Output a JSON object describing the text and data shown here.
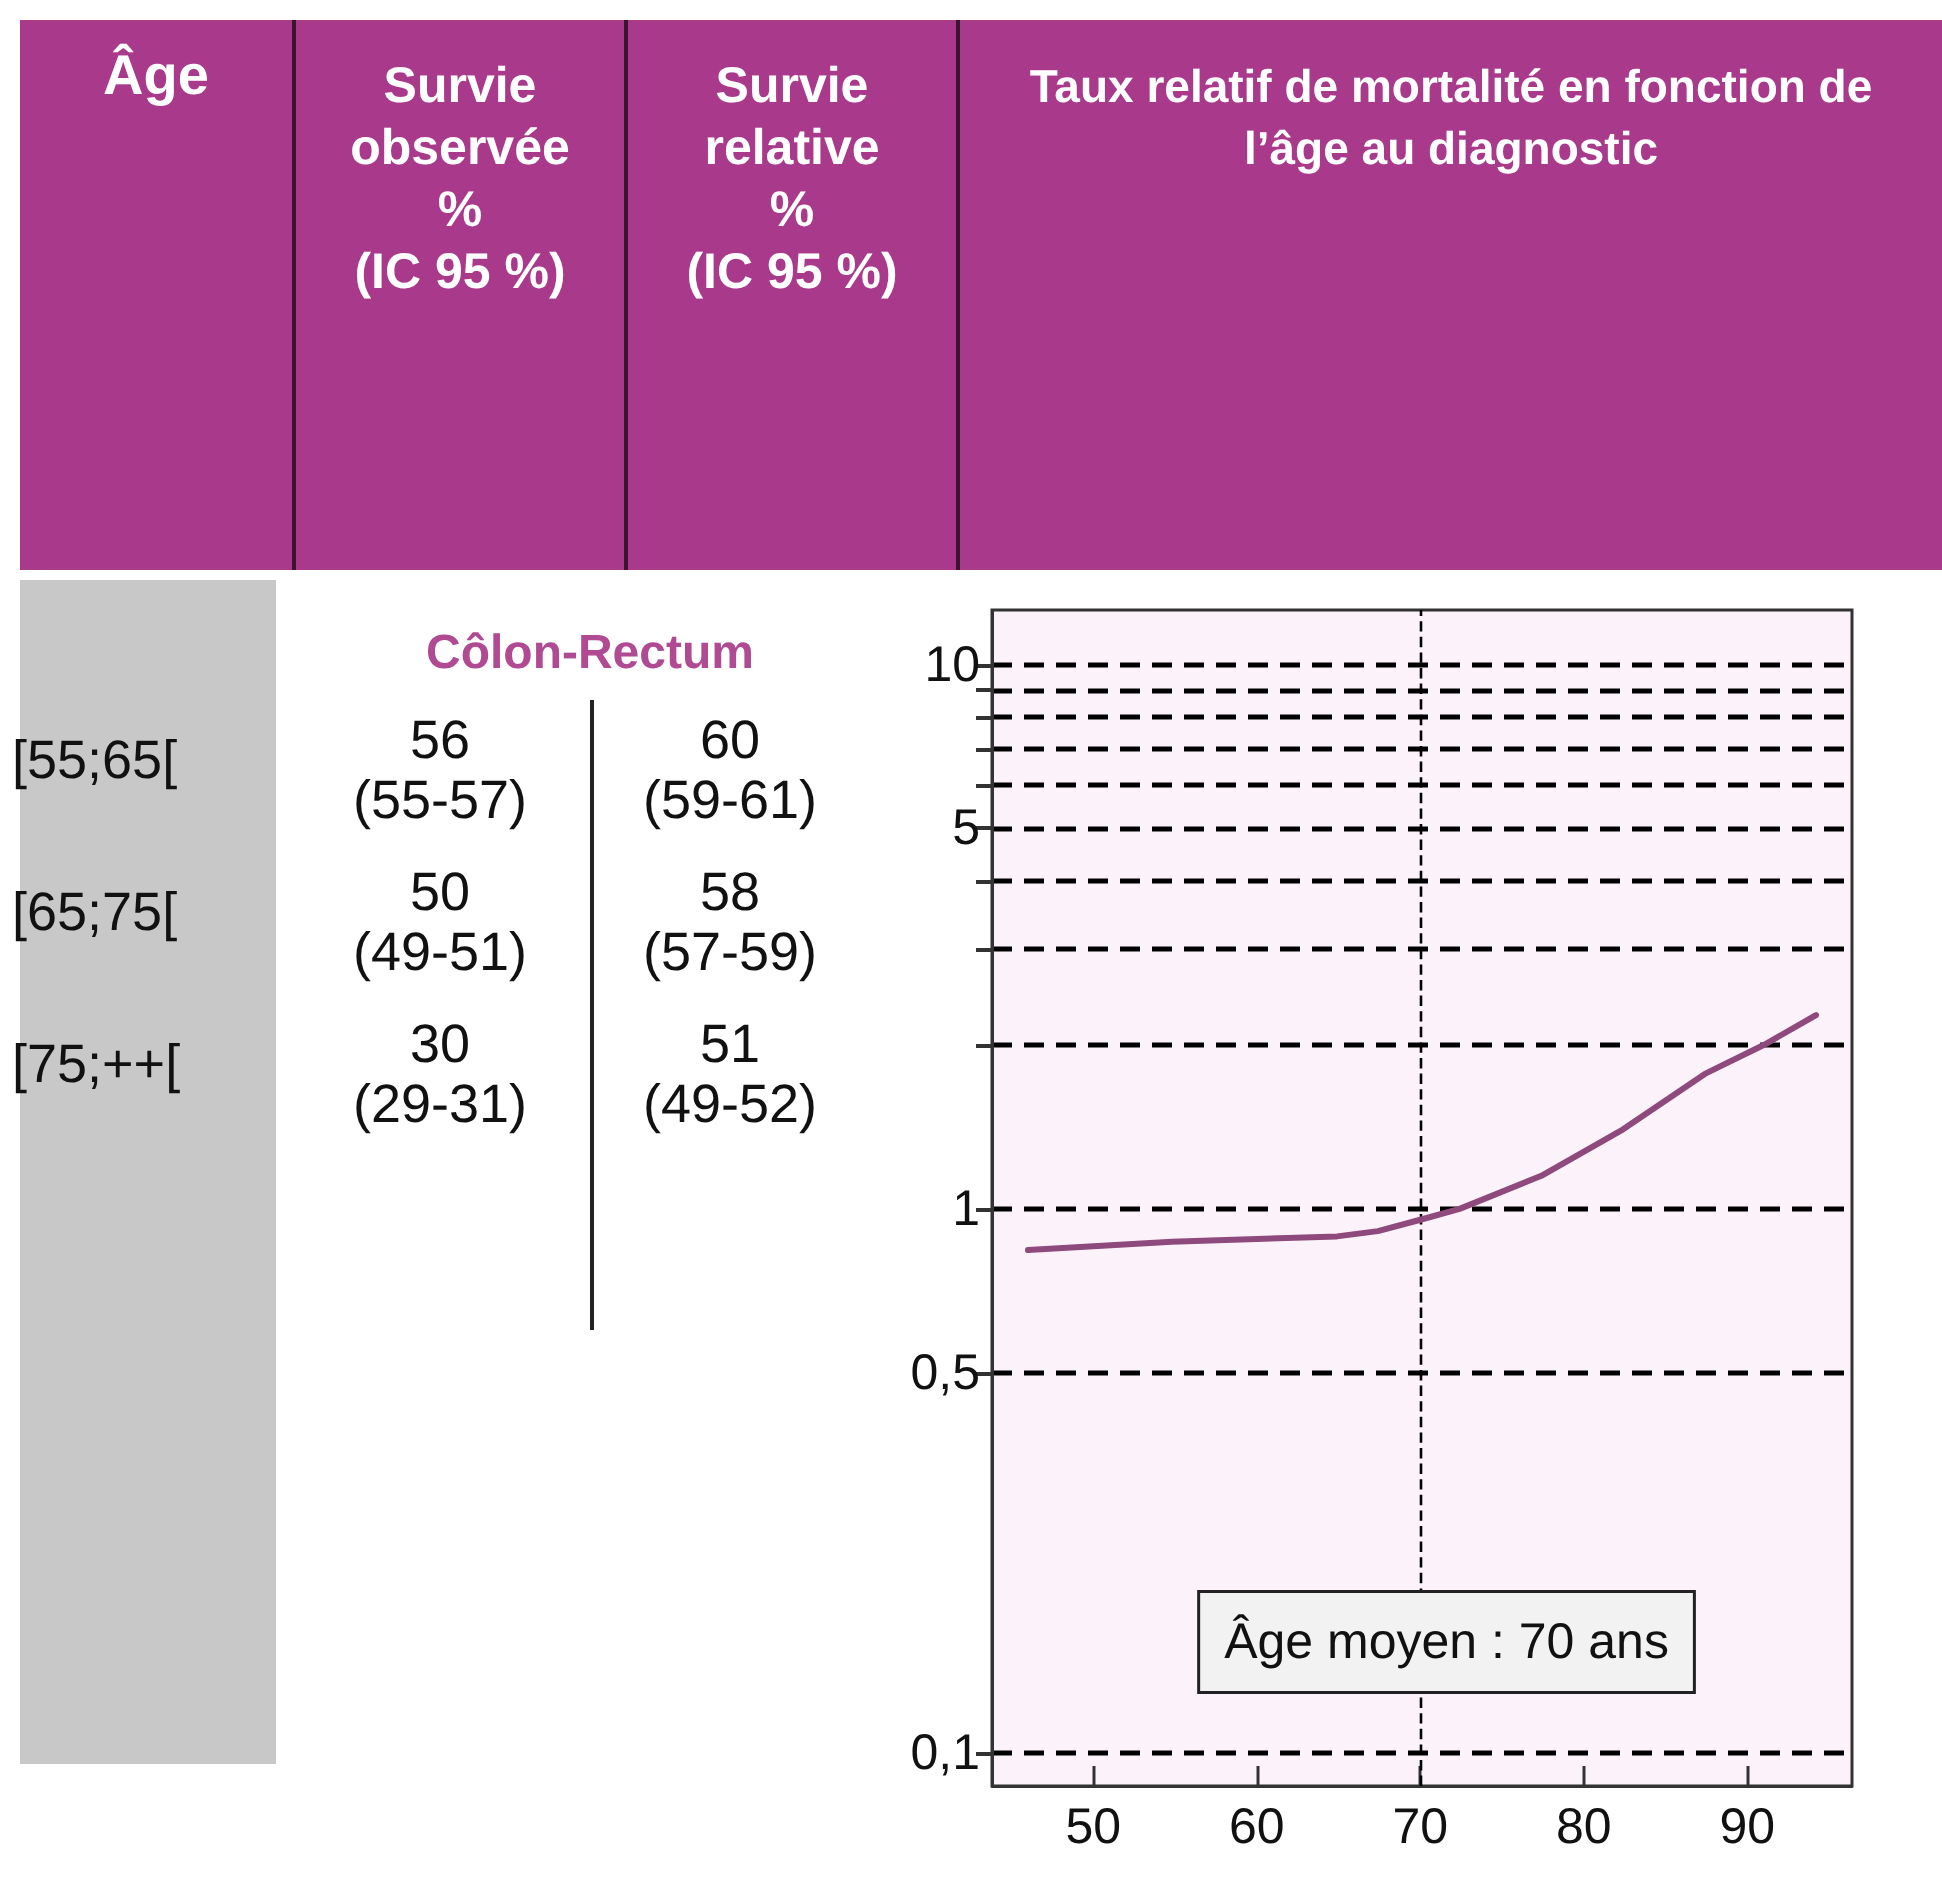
{
  "chart_data": [
    {
      "type": "other",
      "subtitle": "Côlon-Rectum",
      "annotations": [
        "Âge",
        "Survie\nobservée\n%\n(IC 95 %)",
        "Survie\nrelative\n%\n(IC 95 %)",
        "[55;65[",
        "56\n(55-57)",
        "60\n(59-61)",
        "[65;75[",
        "50\n(49-51)",
        "58\n(57-59)",
        "[75;++[",
        "30\n(29-31)",
        "51\n(49-52)"
      ]
    },
    {
      "type": "line",
      "title": "Taux relatif de mortalité en fonction de l’âge au diagnostic",
      "x": [
        46,
        54.8,
        64.9,
        67.4,
        70,
        72.4,
        77.4,
        82.4,
        87.4,
        91,
        94.2
      ],
      "series": [
        {
          "color": "#8e4a7c",
          "values": [
            0.84,
            0.87,
            0.89,
            0.91,
            0.955,
            1.0,
            1.15,
            1.4,
            1.77,
            2.0,
            2.27
          ]
        }
      ],
      "xlim": [
        43.8,
        96.4
      ],
      "xticks": [
        50,
        60,
        70,
        80,
        90
      ],
      "ylim": [
        0.087,
        12.6
      ],
      "log": "y",
      "yticks": [
        {
          "value": 0.1,
          "label": "0,1"
        },
        {
          "value": 0.5,
          "label": "0,5"
        },
        1,
        {
          "value": 2,
          "label": null
        },
        {
          "value": 3,
          "label": null
        },
        {
          "value": 4,
          "label": null
        },
        5,
        {
          "value": 6,
          "label": null
        },
        {
          "value": 7,
          "label": null
        },
        {
          "value": 8,
          "label": null
        },
        {
          "value": 9,
          "label": null
        },
        10
      ],
      "grid": "y",
      "marker": "none",
      "line_style": "solid",
      "ref_lines": [
        {
          "axis": "x",
          "value": 70,
          "color": "#000000",
          "line_style": "dashed"
        }
      ],
      "annotations": [
        "Âge moyen : 70 ans"
      ]
    }
  ]
}
